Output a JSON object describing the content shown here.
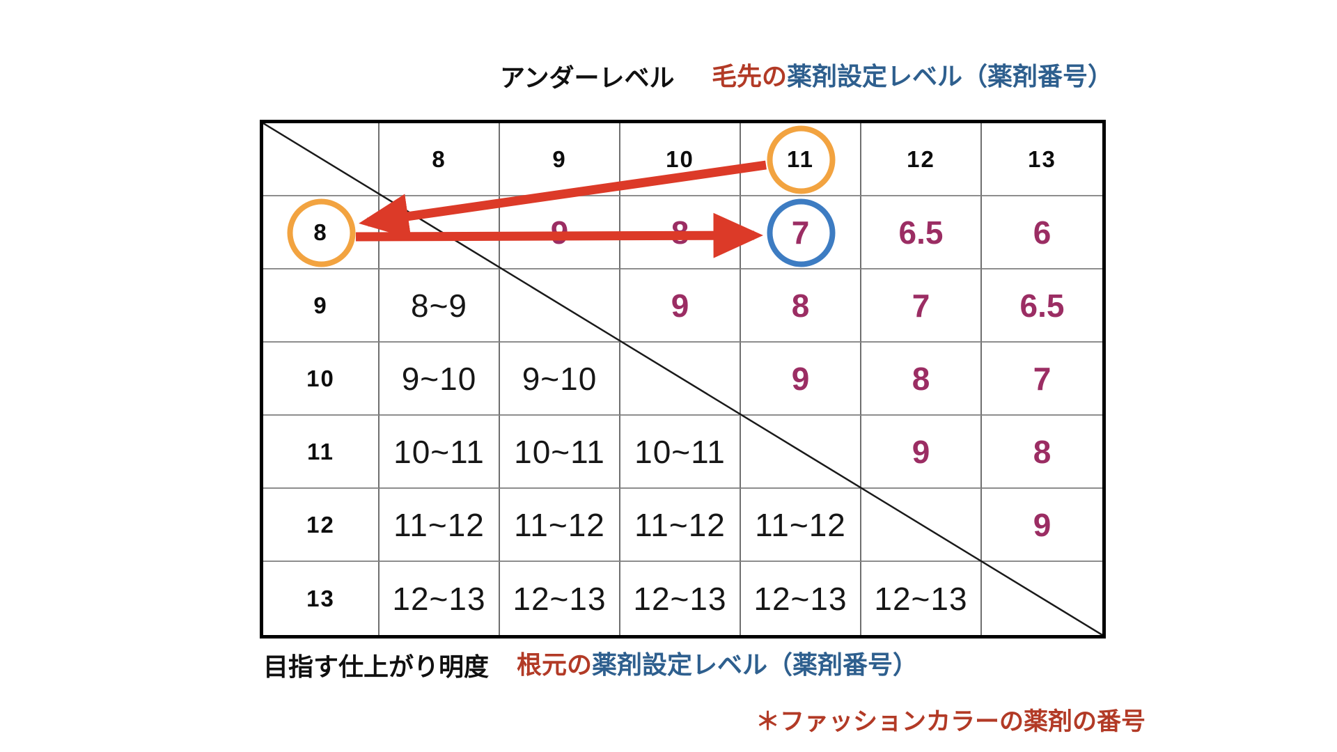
{
  "top_labels": {
    "under_level": "アンダーレベル",
    "tip_red": "毛先の",
    "tip_blue": "薬剤設定レベル（薬剤番号）"
  },
  "bottom_labels": {
    "target_brightness": "目指す仕上がり明度",
    "root_red": "根元の",
    "root_blue": "薬剤設定レベル（薬剤番号）"
  },
  "footnote": "＊ファッションカラーの薬剤の番号",
  "table": {
    "column_headers": [
      "8",
      "9",
      "10",
      "11",
      "12",
      "13"
    ],
    "rows": [
      {
        "header": "8",
        "cells": [
          {
            "text": "",
            "style": "empty"
          },
          {
            "text": "9",
            "style": "purple"
          },
          {
            "text": "8",
            "style": "purple"
          },
          {
            "text": "7",
            "style": "purple"
          },
          {
            "text": "6.5",
            "style": "purple"
          },
          {
            "text": "6",
            "style": "purple"
          }
        ]
      },
      {
        "header": "9",
        "cells": [
          {
            "text": "8~9",
            "style": "range"
          },
          {
            "text": "",
            "style": "empty"
          },
          {
            "text": "9",
            "style": "purple"
          },
          {
            "text": "8",
            "style": "purple"
          },
          {
            "text": "7",
            "style": "purple"
          },
          {
            "text": "6.5",
            "style": "purple"
          }
        ]
      },
      {
        "header": "10",
        "cells": [
          {
            "text": "9~10",
            "style": "range"
          },
          {
            "text": "9~10",
            "style": "range"
          },
          {
            "text": "",
            "style": "empty"
          },
          {
            "text": "9",
            "style": "purple"
          },
          {
            "text": "8",
            "style": "purple"
          },
          {
            "text": "7",
            "style": "purple"
          }
        ]
      },
      {
        "header": "11",
        "cells": [
          {
            "text": "10~11",
            "style": "range"
          },
          {
            "text": "10~11",
            "style": "range"
          },
          {
            "text": "10~11",
            "style": "range"
          },
          {
            "text": "",
            "style": "empty"
          },
          {
            "text": "9",
            "style": "purple"
          },
          {
            "text": "8",
            "style": "purple"
          }
        ]
      },
      {
        "header": "12",
        "cells": [
          {
            "text": "11~12",
            "style": "range"
          },
          {
            "text": "11~12",
            "style": "range"
          },
          {
            "text": "11~12",
            "style": "range"
          },
          {
            "text": "11~12",
            "style": "range"
          },
          {
            "text": "",
            "style": "empty"
          },
          {
            "text": "9",
            "style": "purple"
          }
        ]
      },
      {
        "header": "13",
        "cells": [
          {
            "text": "12~13",
            "style": "range"
          },
          {
            "text": "12~13",
            "style": "range"
          },
          {
            "text": "12~13",
            "style": "range"
          },
          {
            "text": "12~13",
            "style": "range"
          },
          {
            "text": "12~13",
            "style": "range"
          },
          {
            "text": "",
            "style": "empty"
          }
        ]
      }
    ]
  },
  "annotations": {
    "orange_circle_targets": [
      "column-header-11",
      "row-header-8"
    ],
    "blue_circle_target": "cell value 7 (row 8 × column 11)",
    "arrows": [
      {
        "from": "column-header-11 circle",
        "to": "row-header-8 circle"
      },
      {
        "from": "row-header-8 circle",
        "to": "circled value 7"
      }
    ]
  },
  "colors": {
    "purple_value": "#9b2d63",
    "arrow_red": "#dc3a28",
    "text_red": "#b23a26",
    "text_blue": "#2e5f8e",
    "circle_orange": "#f2a340",
    "circle_blue": "#3d7cc2"
  }
}
